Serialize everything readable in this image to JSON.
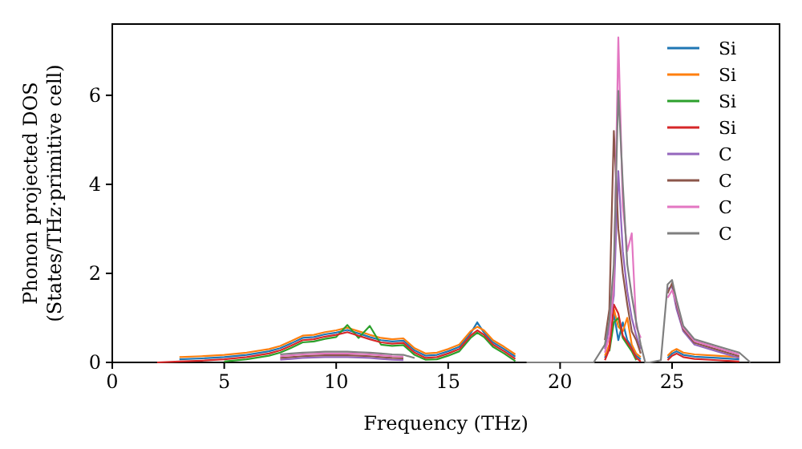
{
  "chart_data": {
    "type": "line",
    "xlabel": "Frequency (THz)",
    "ylabel": "Phonon projected DOS\n(States/THz·primitive cell)",
    "x": [
      2,
      3,
      4,
      5,
      6,
      7,
      7.5,
      8,
      8.5,
      9,
      9.5,
      10,
      10.5,
      11,
      11.5,
      12,
      12.5,
      13,
      13.5,
      14,
      14.5,
      15,
      15.5,
      16,
      16.3,
      16.6,
      17,
      17.5,
      18,
      18.5,
      21.5,
      22,
      22.2,
      22.4,
      22.6,
      22.8,
      23,
      23.2,
      23.4,
      23.6,
      23.8,
      24,
      24.5,
      24.8,
      25,
      25.2,
      25.5,
      26,
      27,
      28,
      28.5
    ],
    "xlim": [
      0,
      29.8
    ],
    "ylim": [
      0,
      7.6
    ],
    "xticks": [
      0,
      5,
      10,
      15,
      20,
      25
    ],
    "yticks": [
      0,
      2,
      4,
      6
    ],
    "legend": "top right",
    "series": [
      {
        "name": "Si",
        "color": "#1f77b4",
        "values": [
          null,
          0.07,
          0.09,
          0.12,
          0.17,
          0.25,
          0.32,
          0.43,
          0.55,
          0.57,
          0.63,
          0.67,
          0.73,
          0.65,
          0.57,
          0.5,
          0.47,
          0.49,
          0.27,
          0.15,
          0.17,
          0.25,
          0.35,
          0.65,
          0.9,
          0.67,
          0.45,
          0.3,
          0.13,
          null,
          null,
          0.1,
          0.35,
          1.1,
          0.5,
          0.9,
          0.5,
          0.35,
          0.15,
          0.07,
          null,
          null,
          null,
          0.1,
          0.2,
          0.25,
          0.17,
          0.13,
          0.1,
          0.07,
          null
        ]
      },
      {
        "name": "Si",
        "color": "#ff7f0e",
        "values": [
          null,
          0.12,
          0.14,
          0.17,
          0.22,
          0.3,
          0.37,
          0.48,
          0.6,
          0.62,
          0.68,
          0.72,
          0.78,
          0.7,
          0.62,
          0.55,
          0.52,
          0.54,
          0.32,
          0.2,
          0.22,
          0.3,
          0.4,
          0.7,
          0.8,
          0.72,
          0.5,
          0.35,
          0.18,
          null,
          null,
          0.15,
          0.4,
          1.2,
          0.8,
          0.7,
          1,
          0.4,
          0.2,
          0.12,
          null,
          null,
          null,
          0.15,
          0.25,
          0.3,
          0.22,
          0.18,
          0.15,
          0.12,
          null
        ]
      },
      {
        "name": "Si",
        "color": "#2ca02c",
        "values": [
          null,
          null,
          null,
          0.02,
          0.07,
          0.15,
          0.22,
          0.33,
          0.45,
          0.47,
          0.53,
          0.57,
          0.84,
          0.55,
          0.82,
          0.4,
          0.37,
          0.39,
          0.17,
          0.06,
          0.07,
          0.15,
          0.25,
          0.55,
          0.67,
          0.57,
          0.35,
          0.2,
          0.03,
          null,
          null,
          null,
          0.25,
          0.9,
          1,
          0.55,
          0.4,
          0.25,
          0.05,
          null,
          null,
          null,
          null,
          null,
          null,
          null,
          null,
          null,
          null,
          null,
          null
        ]
      },
      {
        "name": "Si",
        "color": "#d62728",
        "values": [
          0,
          0.02,
          0.04,
          0.07,
          0.12,
          0.2,
          0.27,
          0.38,
          0.5,
          0.52,
          0.58,
          0.62,
          0.68,
          0.6,
          0.52,
          0.45,
          0.42,
          0.44,
          0.22,
          0.1,
          0.12,
          0.2,
          0.3,
          0.6,
          0.72,
          0.62,
          0.4,
          0.25,
          0.08,
          null,
          null,
          0.05,
          0.3,
          1.3,
          1.1,
          0.6,
          0.45,
          0.3,
          0.1,
          0.02,
          null,
          null,
          null,
          0.05,
          0.15,
          0.2,
          0.12,
          0.08,
          0.05,
          0.02,
          null
        ]
      },
      {
        "name": "C",
        "color": "#9467bd",
        "values": [
          null,
          null,
          null,
          null,
          null,
          null,
          0.06,
          0.08,
          0.1,
          0.11,
          0.12,
          0.12,
          0.12,
          0.11,
          0.1,
          0.08,
          0.06,
          0.05,
          null,
          null,
          null,
          null,
          null,
          null,
          null,
          null,
          null,
          null,
          null,
          null,
          null,
          0.3,
          0.8,
          1.5,
          4.3,
          2.5,
          1.6,
          1,
          0.6,
          0.3,
          null,
          null,
          null,
          1.65,
          1.7,
          1.2,
          0.7,
          0.4,
          0.25,
          0.1,
          null
        ]
      },
      {
        "name": "C",
        "color": "#8c564b",
        "values": [
          null,
          null,
          null,
          null,
          null,
          null,
          0.1,
          0.12,
          0.14,
          0.15,
          0.16,
          0.16,
          0.16,
          0.15,
          0.14,
          0.12,
          0.1,
          0.09,
          null,
          null,
          null,
          null,
          null,
          null,
          null,
          null,
          null,
          null,
          null,
          null,
          null,
          0.5,
          1.2,
          5.2,
          3,
          2,
          1.3,
          0.7,
          0.5,
          0.2,
          null,
          null,
          null,
          1.55,
          1.78,
          1.3,
          0.74,
          0.44,
          0.29,
          0.14,
          null
        ]
      },
      {
        "name": "C",
        "color": "#e377c2",
        "values": [
          null,
          null,
          null,
          null,
          null,
          null,
          0.14,
          0.16,
          0.18,
          0.19,
          0.2,
          0.2,
          0.2,
          0.19,
          0.18,
          0.16,
          0.14,
          0.13,
          null,
          null,
          null,
          null,
          null,
          null,
          null,
          null,
          null,
          null,
          null,
          null,
          null,
          0.22,
          0.6,
          1.8,
          7.3,
          3.5,
          2.5,
          2.9,
          0.8,
          0.55,
          null,
          null,
          null,
          1.45,
          1.62,
          1.35,
          0.78,
          0.48,
          0.33,
          0.18,
          null
        ]
      },
      {
        "name": "C",
        "color": "#7f7f7f",
        "values": [
          null,
          null,
          null,
          null,
          null,
          null,
          0.18,
          0.2,
          0.22,
          0.23,
          0.24,
          0.24,
          0.24,
          0.23,
          0.22,
          0.2,
          0.18,
          0.17,
          0.1,
          null,
          null,
          null,
          null,
          null,
          null,
          null,
          null,
          null,
          null,
          0,
          0,
          0.4,
          0.95,
          2.2,
          6.1,
          4,
          2.2,
          1.5,
          0.9,
          0.4,
          0,
          0,
          0.05,
          1.75,
          1.85,
          1.4,
          0.82,
          0.52,
          0.37,
          0.22,
          0
        ]
      }
    ]
  }
}
